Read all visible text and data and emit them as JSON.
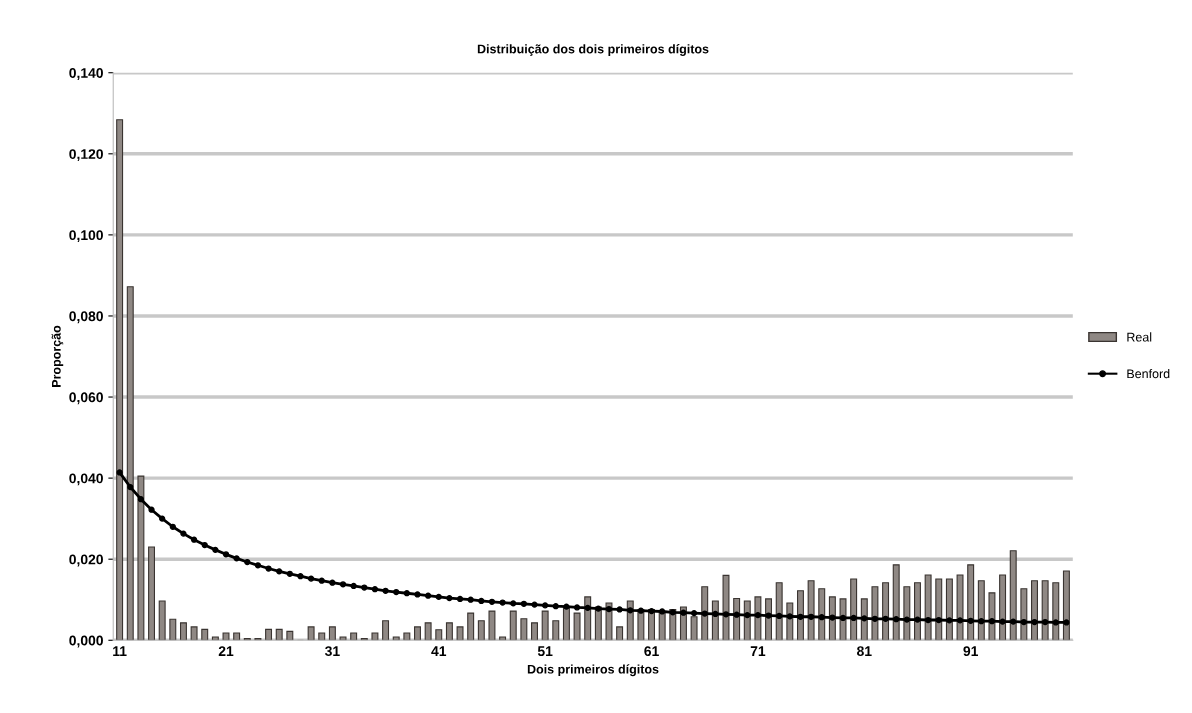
{
  "chart_data": {
    "type": "bar",
    "title": "Distribuição dos dois primeiros dígitos",
    "xlabel": "Dois primeiros dígitos",
    "ylabel": "Proporção",
    "categories": [
      "11",
      null,
      null,
      null,
      null,
      null,
      null,
      null,
      null,
      null,
      "21",
      null,
      null,
      null,
      null,
      null,
      null,
      null,
      null,
      null,
      "31",
      null,
      null,
      null,
      null,
      null,
      null,
      null,
      null,
      null,
      "41",
      null,
      null,
      null,
      null,
      null,
      null,
      null,
      null,
      null,
      "51",
      null,
      null,
      null,
      null,
      null,
      null,
      null,
      null,
      null,
      "61",
      null,
      null,
      null,
      null,
      null,
      null,
      null,
      null,
      null,
      "71",
      null,
      null,
      null,
      null,
      null,
      null,
      null,
      null,
      null,
      "81",
      null,
      null,
      null,
      null,
      null,
      null,
      null,
      null,
      null,
      "91",
      null,
      null,
      null,
      null,
      null,
      null,
      null,
      null,
      null
    ],
    "series": [
      {
        "name": "Real",
        "color": "#8f8884",
        "values": [
          0.1284,
          0.0872,
          0.0405,
          0.023,
          0.0097,
          0.0052,
          0.0043,
          0.0033,
          0.0027,
          0.0008,
          0.0018,
          0.0018,
          0.0004,
          0.0004,
          0.0027,
          0.0027,
          0.0022,
          0,
          0.0033,
          0.0018,
          0.0033,
          0.0008,
          0.0018,
          0.0004,
          0.0018,
          0.0048,
          0.0008,
          0.0018,
          0.0033,
          0.0043,
          0.0026,
          0.0043,
          0.0033,
          0.0067,
          0.0048,
          0.0072,
          0.0008,
          0.0072,
          0.0053,
          0.0043,
          0.0072,
          0.0048,
          0.008,
          0.0067,
          0.0107,
          0.0082,
          0.0092,
          0.0033,
          0.0097,
          0.0076,
          0.0076,
          0.007,
          0.0076,
          0.0082,
          0.0058,
          0.0132,
          0.0097,
          0.016,
          0.0103,
          0.0097,
          0.0107,
          0.0102,
          0.0142,
          0.0092,
          0.0122,
          0.0147,
          0.0127,
          0.0107,
          0.0102,
          0.0151,
          0.0102,
          0.0132,
          0.0142,
          0.0186,
          0.0132,
          0.0142,
          0.0161,
          0.0151,
          0.0151,
          0.0161,
          0.0186,
          0.0147,
          0.0117,
          0.0161,
          0.0221,
          0.0127,
          0.0147,
          0.0147,
          0.0142,
          0.0171
        ]
      },
      {
        "name": "Benford",
        "type": "line",
        "color": "#000000",
        "marker": "circle",
        "values": [
          0.0414,
          0.0378,
          0.0348,
          0.0322,
          0.03,
          0.028,
          0.0263,
          0.0248,
          0.0235,
          0.0223,
          0.0212,
          0.0202,
          0.0193,
          0.0185,
          0.0177,
          0.017,
          0.0164,
          0.0158,
          0.0152,
          0.0147,
          0.0142,
          0.0138,
          0.0134,
          0.013,
          0.0126,
          0.0122,
          0.0119,
          0.0116,
          0.0113,
          0.011,
          0.0107,
          0.0104,
          0.0102,
          0.01,
          0.0097,
          0.0095,
          0.0093,
          0.0091,
          0.009,
          0.0088,
          0.0086,
          0.0084,
          0.0083,
          0.0081,
          0.008,
          0.0078,
          0.0077,
          0.0076,
          0.0074,
          0.0073,
          0.0072,
          0.0071,
          0.0069,
          0.0068,
          0.0067,
          0.0066,
          0.0065,
          0.0064,
          0.0063,
          0.0062,
          0.0062,
          0.0061,
          0.006,
          0.0059,
          0.0058,
          0.0058,
          0.0057,
          0.0056,
          0.0055,
          0.0055,
          0.0054,
          0.0053,
          0.0053,
          0.0052,
          0.0051,
          0.0051,
          0.005,
          0.005,
          0.0049,
          0.0049,
          0.0048,
          0.0047,
          0.0047,
          0.0046,
          0.0046,
          0.0045,
          0.0045,
          0.0045,
          0.0044,
          0.0044
        ]
      }
    ],
    "ylim": [
      0,
      0.14
    ],
    "yticks": [
      {
        "value": 0,
        "label": "0,000"
      },
      {
        "value": 0.02,
        "label": "0,020"
      },
      {
        "value": 0.04,
        "label": "0,040"
      },
      {
        "value": 0.06,
        "label": "0,060"
      },
      {
        "value": 0.08,
        "label": "0,080"
      },
      {
        "value": 0.1,
        "label": "0,100"
      },
      {
        "value": 0.12,
        "label": "0,120"
      },
      {
        "value": 0.14,
        "label": "0,140"
      }
    ],
    "grid": "y",
    "legend": "right"
  }
}
